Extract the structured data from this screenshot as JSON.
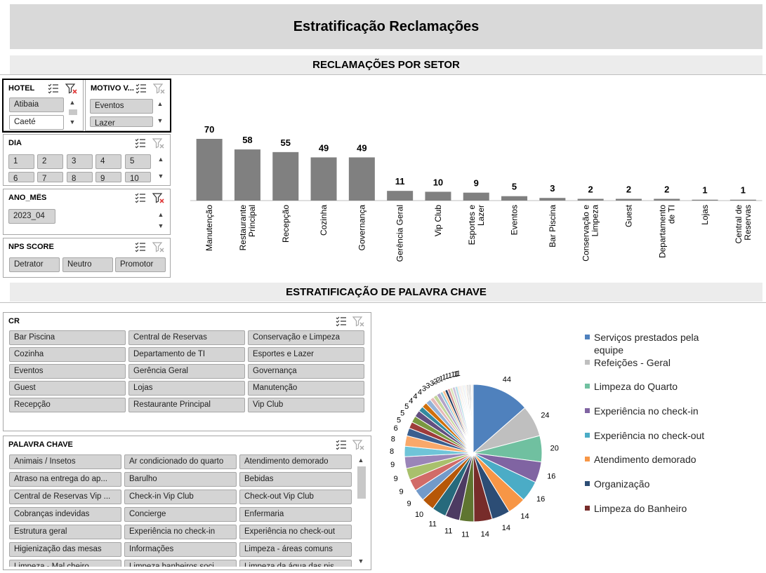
{
  "page": {
    "title": "Estratificação Reclamações"
  },
  "sections": {
    "by_sector": "RECLAMAÇÕES POR SETOR",
    "by_keyword": "ESTRATIFICAÇÃO DE PALAVRA CHAVE"
  },
  "icons": {
    "multi_select": "multi-select-icon",
    "clear_filter": "clear-filter-icon"
  },
  "colors": {
    "bar": "#808080",
    "slicer_chip": "#d4d4d4",
    "banner": "#d9d9d9",
    "clear_filter_active": "#e03b3b"
  },
  "slicers": {
    "hotel": {
      "title": "HOTEL",
      "items": [
        "Atibaia",
        "Caeté"
      ],
      "filtered": true
    },
    "motivo": {
      "title": "MOTIVO V...",
      "items": [
        "Eventos",
        "Lazer"
      ]
    },
    "dia": {
      "title": "DIA",
      "items": [
        "1",
        "2",
        "3",
        "4",
        "5",
        "6",
        "7",
        "8",
        "9",
        "10"
      ]
    },
    "ano_mes": {
      "title": "ANO_MÊS",
      "items": [
        "2023_04"
      ],
      "filtered": true
    },
    "nps": {
      "title": "NPS SCORE",
      "items": [
        "Detrator",
        "Neutro",
        "Promotor"
      ]
    },
    "cr": {
      "title": "CR",
      "items": [
        "Bar Piscina",
        "Central de Reservas",
        "Conservação e Limpeza",
        "Cozinha",
        "Departamento de TI",
        "Esportes e Lazer",
        "Eventos",
        "Gerência Geral",
        "Governança",
        "Guest",
        "Lojas",
        "Manutenção",
        "Recepção",
        "Restaurante Principal",
        "Vip Club"
      ]
    },
    "palavra": {
      "title": "PALAVRA CHAVE",
      "items": [
        "Animais / Insetos",
        "Ar condicionado do quarto",
        "Atendimento demorado",
        "Atraso na entrega do ap...",
        "Barulho",
        "Bebidas",
        "Central de Reservas Vip ...",
        "Check-in Vip Club",
        "Check-out Vip Club",
        "Cobranças indevidas",
        "Concierge",
        "Enfermaria",
        "Estrutura geral",
        "Experiência no check-in",
        "Experiência no check-out",
        "Higienização das mesas",
        "Informações",
        "Limpeza - áreas comuns",
        "Limpeza - Mal cheiro",
        "Limpeza banheiros soci...",
        "Limpeza da água das pis..."
      ]
    }
  },
  "chart_data": [
    {
      "type": "bar",
      "title": "RECLAMAÇÕES POR SETOR",
      "categories": [
        "Manutenção",
        "Restaurante Principal",
        "Recepção",
        "Cozinha",
        "Governança",
        "Gerência Geral",
        "Vip Club",
        "Esportes e Lazer",
        "Eventos",
        "Bar Piscina",
        "Conservação e Limpeza",
        "Guest",
        "Departamento de TI",
        "Lojas",
        "Central de Reservas"
      ],
      "category_label_lines": [
        [
          "Manutenção"
        ],
        [
          "Restaurante",
          "Principal"
        ],
        [
          "Recepção"
        ],
        [
          "Cozinha"
        ],
        [
          "Governança"
        ],
        [
          "Gerência Geral"
        ],
        [
          "Vip Club"
        ],
        [
          "Esportes e",
          "Lazer"
        ],
        [
          "Eventos"
        ],
        [
          "Bar Piscina"
        ],
        [
          "Conservação e",
          "Limpeza"
        ],
        [
          "Guest"
        ],
        [
          "Departamento",
          "de TI"
        ],
        [
          "Lojas"
        ],
        [
          "Central de",
          "Reservas"
        ]
      ],
      "values": [
        70,
        58,
        55,
        49,
        49,
        11,
        10,
        9,
        5,
        3,
        2,
        2,
        2,
        1,
        1
      ],
      "ylim": [
        0,
        70
      ],
      "grid": false,
      "data_labels": true
    },
    {
      "type": "pie",
      "title": "ESTRATIFICAÇÃO DE PALAVRA CHAVE",
      "labeled_values": [
        44,
        24,
        20,
        16,
        16,
        14,
        14,
        14,
        11,
        11,
        11,
        10,
        9,
        9,
        9,
        9,
        8,
        8,
        6,
        5,
        5,
        5,
        4,
        4,
        4,
        3,
        3,
        3,
        2,
        2,
        1,
        1,
        1,
        1,
        1,
        1,
        1,
        1
      ],
      "values": [
        44,
        24,
        20,
        16,
        16,
        14,
        14,
        14,
        11,
        11,
        11,
        10,
        9,
        9,
        9,
        9,
        8,
        8,
        6,
        5,
        5,
        5,
        4,
        4,
        4,
        3,
        3,
        3,
        2,
        2,
        2,
        2,
        2,
        2,
        2,
        1,
        1,
        1,
        1,
        1,
        1,
        1,
        1,
        1,
        1,
        1,
        1
      ],
      "legend": [
        "Serviços prestados pela equipe",
        "Refeições - Geral",
        "Limpeza do Quarto",
        "Experiência no check-in",
        "Experiência no check-out",
        "Atendimento demorado",
        "Organização",
        "Limpeza do Banheiro"
      ],
      "colors": [
        "#4f81bd",
        "#bfbfbf",
        "#70c0a0",
        "#8064a2",
        "#4bacc6",
        "#f79646",
        "#2c4d75",
        "#772c2a",
        "#5f7530",
        "#4d3b62",
        "#276a7c",
        "#b65708",
        "#729aca",
        "#d16b68",
        "#a8c06c",
        "#9a85b8",
        "#6fc4d8",
        "#f9a86a",
        "#3a5f8f",
        "#9e3c3a",
        "#7a9840",
        "#634f80",
        "#338a9f",
        "#d0700c",
        "#95b3d7",
        "#e6b9b8",
        "#c3d69b",
        "#b3a2c7",
        "#93cddd",
        "#fac090",
        "#1f3a5f",
        "#d99694",
        "#d7e4bd",
        "#ccc1da",
        "#b7dee8",
        "#fcd5b5",
        "#dce6f2",
        "#f2dcdb",
        "#ebf1de",
        "#e4dfec",
        "#dbeef4",
        "#fdeada",
        "#c0c0c0",
        "#d9d9d9",
        "#a5a5a5",
        "#f2f2f2",
        "#e0e0e0"
      ],
      "legend_placement": "right"
    }
  ]
}
